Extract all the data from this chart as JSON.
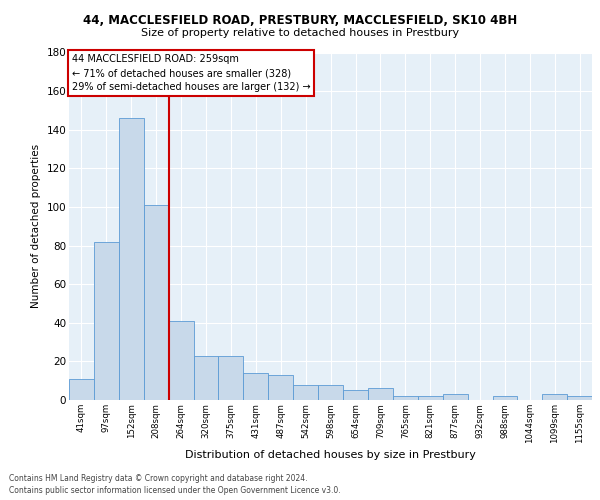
{
  "title": "44, MACCLESFIELD ROAD, PRESTBURY, MACCLESFIELD, SK10 4BH",
  "subtitle": "Size of property relative to detached houses in Prestbury",
  "xlabel": "Distribution of detached houses by size in Prestbury",
  "ylabel": "Number of detached properties",
  "bar_color": "#c8d9ea",
  "bar_edge_color": "#5b9bd5",
  "categories": [
    "41sqm",
    "97sqm",
    "152sqm",
    "208sqm",
    "264sqm",
    "320sqm",
    "375sqm",
    "431sqm",
    "487sqm",
    "542sqm",
    "598sqm",
    "654sqm",
    "709sqm",
    "765sqm",
    "821sqm",
    "877sqm",
    "932sqm",
    "988sqm",
    "1044sqm",
    "1099sqm",
    "1155sqm"
  ],
  "values": [
    11,
    82,
    146,
    101,
    41,
    23,
    23,
    14,
    13,
    8,
    8,
    5,
    6,
    2,
    2,
    3,
    0,
    2,
    0,
    3,
    2
  ],
  "ylim": [
    0,
    180
  ],
  "yticks": [
    0,
    20,
    40,
    60,
    80,
    100,
    120,
    140,
    160,
    180
  ],
  "property_line_color": "#cc0000",
  "annotation_text_line1": "44 MACCLESFIELD ROAD: 259sqm",
  "annotation_text_line2": "← 71% of detached houses are smaller (328)",
  "annotation_text_line3": "29% of semi-detached houses are larger (132) →",
  "footer_line1": "Contains HM Land Registry data © Crown copyright and database right 2024.",
  "footer_line2": "Contains public sector information licensed under the Open Government Licence v3.0.",
  "background_color": "#e6f0f8",
  "grid_color": "#ffffff",
  "fig_bg": "#ffffff"
}
